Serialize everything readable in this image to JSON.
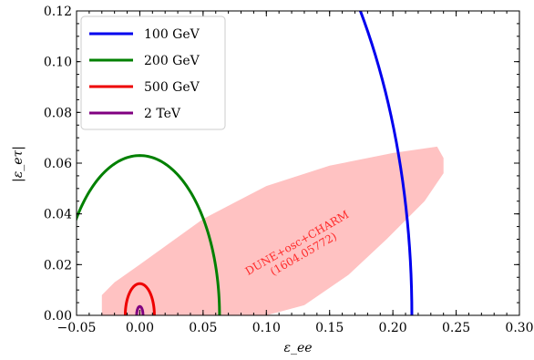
{
  "chart_data": {
    "type": "line",
    "xlabel": "ε_ee",
    "ylabel": "|ε_eτ|",
    "xlim": [
      -0.05,
      0.3
    ],
    "ylim": [
      0.0,
      0.12
    ],
    "xticks": [
      "−0.05",
      "0.00",
      "0.05",
      "0.10",
      "0.15",
      "0.20",
      "0.25",
      "0.30"
    ],
    "yticks": [
      "0.00",
      "0.02",
      "0.04",
      "0.06",
      "0.08",
      "0.10",
      "0.12"
    ],
    "grid": false,
    "legend_position": "top-left",
    "series": [
      {
        "name": "100 GeV",
        "color": "#0000ee",
        "center": 0.0,
        "rx": 0.215,
        "ry": 0.205
      },
      {
        "name": "200 GeV",
        "color": "#008000",
        "center": 0.0,
        "rx": 0.063,
        "ry": 0.063
      },
      {
        "name": "500 GeV",
        "color": "#ee0000",
        "center": 0.0,
        "rx": 0.0115,
        "ry": 0.0125
      },
      {
        "name": "2 TeV",
        "color": "#800080",
        "center": 0.0,
        "rx": 0.0025,
        "ry": 0.0035
      }
    ],
    "region": {
      "color": "#ffc2c2",
      "label_line1": "DUNE+osc+CHARM",
      "label_line2": "(1604.05772)",
      "label_color": "#ff2a2a",
      "polygon": [
        [
          -0.03,
          0.0
        ],
        [
          -0.03,
          0.008
        ],
        [
          -0.02,
          0.013
        ],
        [
          0.0,
          0.02
        ],
        [
          0.05,
          0.038
        ],
        [
          0.1,
          0.051
        ],
        [
          0.15,
          0.059
        ],
        [
          0.2,
          0.064
        ],
        [
          0.235,
          0.0665
        ],
        [
          0.24,
          0.062
        ],
        [
          0.24,
          0.056
        ],
        [
          0.225,
          0.045
        ],
        [
          0.195,
          0.03
        ],
        [
          0.165,
          0.016
        ],
        [
          0.13,
          0.004
        ],
        [
          0.1,
          0.0
        ]
      ]
    }
  }
}
